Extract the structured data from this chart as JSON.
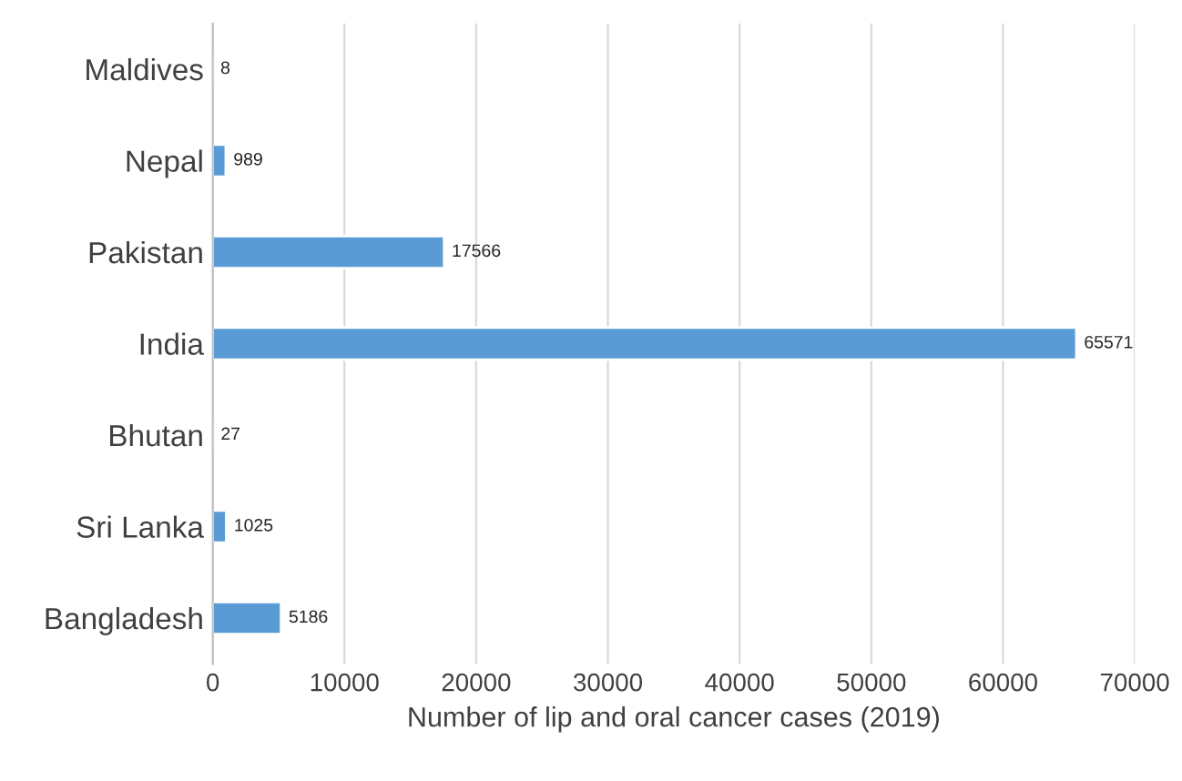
{
  "chart_data": {
    "type": "bar",
    "orientation": "horizontal",
    "xlabel": "Number of lip and oral cancer cases (2019)",
    "categories": [
      "Maldives",
      "Nepal",
      "Pakistan",
      "India",
      "Bhutan",
      "Sri Lanka",
      "Bangladesh"
    ],
    "values": [
      8,
      989,
      17566,
      65571,
      27,
      1025,
      5186
    ],
    "color": "#5b9bd5",
    "data_labels": true,
    "grid": "x",
    "xlim": [
      0,
      70000
    ],
    "xticks": [
      0,
      10000,
      20000,
      30000,
      40000,
      50000,
      60000,
      70000
    ]
  }
}
